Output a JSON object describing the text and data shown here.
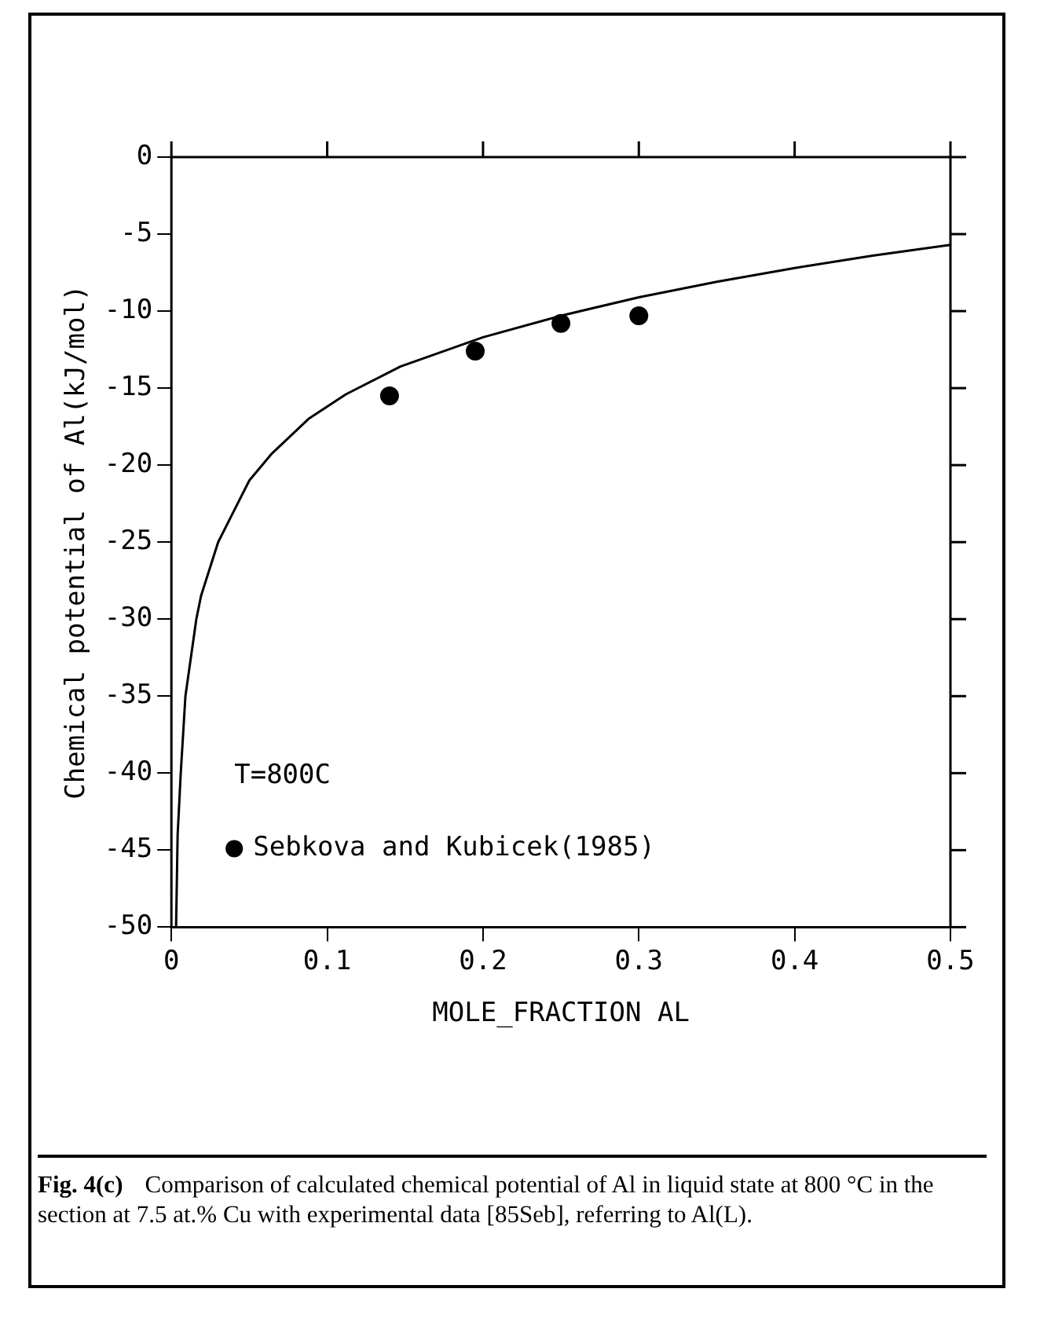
{
  "chart_data": {
    "type": "line",
    "xlabel": "MOLE_FRACTION AL",
    "ylabel": "Chemical potential of Al(kJ/mol)",
    "xlim": [
      0,
      0.5
    ],
    "xticks": [
      0,
      0.1,
      0.2,
      0.3,
      0.4,
      0.5
    ],
    "ylim": [
      -50,
      0
    ],
    "yticks": [
      0,
      -5,
      -10,
      -15,
      -20,
      -25,
      -30,
      -35,
      -40,
      -45,
      -50
    ],
    "grid": false,
    "legend": "bottom left",
    "series": [
      {
        "type": "line",
        "color": "#000000",
        "marker": "none",
        "line_style": "solid",
        "x": [
          0.003,
          0.004,
          0.006,
          0.009,
          0.016,
          0.019,
          0.03,
          0.039,
          0.05,
          0.064,
          0.088,
          0.112,
          0.147,
          0.2,
          0.25,
          0.3,
          0.35,
          0.4,
          0.45,
          0.5
        ],
        "values": [
          -50,
          -44,
          -40,
          -35,
          -30,
          -28.5,
          -25,
          -23.2,
          -21,
          -19.3,
          -17,
          -15.4,
          -13.6,
          -11.7,
          -10.3,
          -9.1,
          -8.1,
          -7.2,
          -6.4,
          -5.7
        ]
      },
      {
        "type": "scatter",
        "name": "Sebkova and Kubicek(1985)",
        "color": "#000000",
        "marker": "circle",
        "x": [
          0.14,
          0.195,
          0.25,
          0.3
        ],
        "values": [
          -15.5,
          -12.6,
          -10.8,
          -10.3
        ]
      }
    ],
    "annotations": [
      "T=800C",
      "Fig. 4(c)",
      "Comparison of calculated chemical potential of Al in liquid state at 800 °C in the section at 7.5 at.% Cu with experimental data [85Seb], referring to Al(L)."
    ]
  }
}
